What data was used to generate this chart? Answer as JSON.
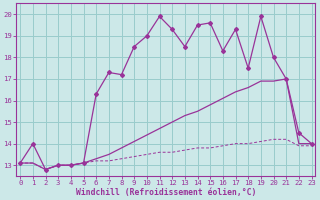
{
  "bg_color": "#cce8e8",
  "grid_color": "#99cccc",
  "line_color": "#993399",
  "xlim": [
    -0.3,
    23.3
  ],
  "ylim": [
    12.5,
    20.5
  ],
  "yticks": [
    13,
    14,
    15,
    16,
    17,
    18,
    19,
    20
  ],
  "xticks": [
    0,
    1,
    2,
    3,
    4,
    5,
    6,
    7,
    8,
    9,
    10,
    11,
    12,
    13,
    14,
    15,
    16,
    17,
    18,
    19,
    20,
    21,
    22,
    23
  ],
  "xlabel": "Windchill (Refroidissement éolien,°C)",
  "s_wavy_x": [
    0,
    1,
    2,
    3,
    4,
    5,
    6,
    7,
    8,
    9,
    10,
    11,
    12,
    13,
    14,
    15,
    16,
    17,
    18,
    19,
    20,
    21,
    22,
    23
  ],
  "s_wavy_y": [
    13.1,
    14.0,
    12.8,
    13.0,
    13.0,
    13.1,
    16.3,
    17.3,
    17.2,
    18.5,
    19.0,
    19.9,
    19.3,
    18.5,
    19.5,
    19.6,
    18.3,
    19.3,
    17.5,
    19.9,
    18.0,
    17.0,
    14.5,
    14.0
  ],
  "s_diag_x": [
    0,
    1,
    2,
    3,
    4,
    5,
    6,
    7,
    8,
    9,
    10,
    11,
    12,
    13,
    14,
    15,
    16,
    17,
    18,
    19,
    20,
    21,
    22,
    23
  ],
  "s_diag_y": [
    13.1,
    13.1,
    12.8,
    13.0,
    13.0,
    13.1,
    13.3,
    13.5,
    13.8,
    14.1,
    14.4,
    14.7,
    15.0,
    15.3,
    15.5,
    15.8,
    16.1,
    16.4,
    16.6,
    16.9,
    16.9,
    17.0,
    14.0,
    14.0
  ],
  "s_flat_x": [
    0,
    1,
    2,
    3,
    4,
    5,
    6,
    7,
    8,
    9,
    10,
    11,
    12,
    13,
    14,
    15,
    16,
    17,
    18,
    19,
    20,
    21,
    22,
    23
  ],
  "s_flat_y": [
    13.1,
    13.1,
    12.8,
    13.0,
    13.0,
    13.1,
    13.2,
    13.2,
    13.3,
    13.4,
    13.5,
    13.6,
    13.6,
    13.7,
    13.8,
    13.8,
    13.9,
    14.0,
    14.0,
    14.1,
    14.2,
    14.2,
    13.9,
    13.9
  ]
}
